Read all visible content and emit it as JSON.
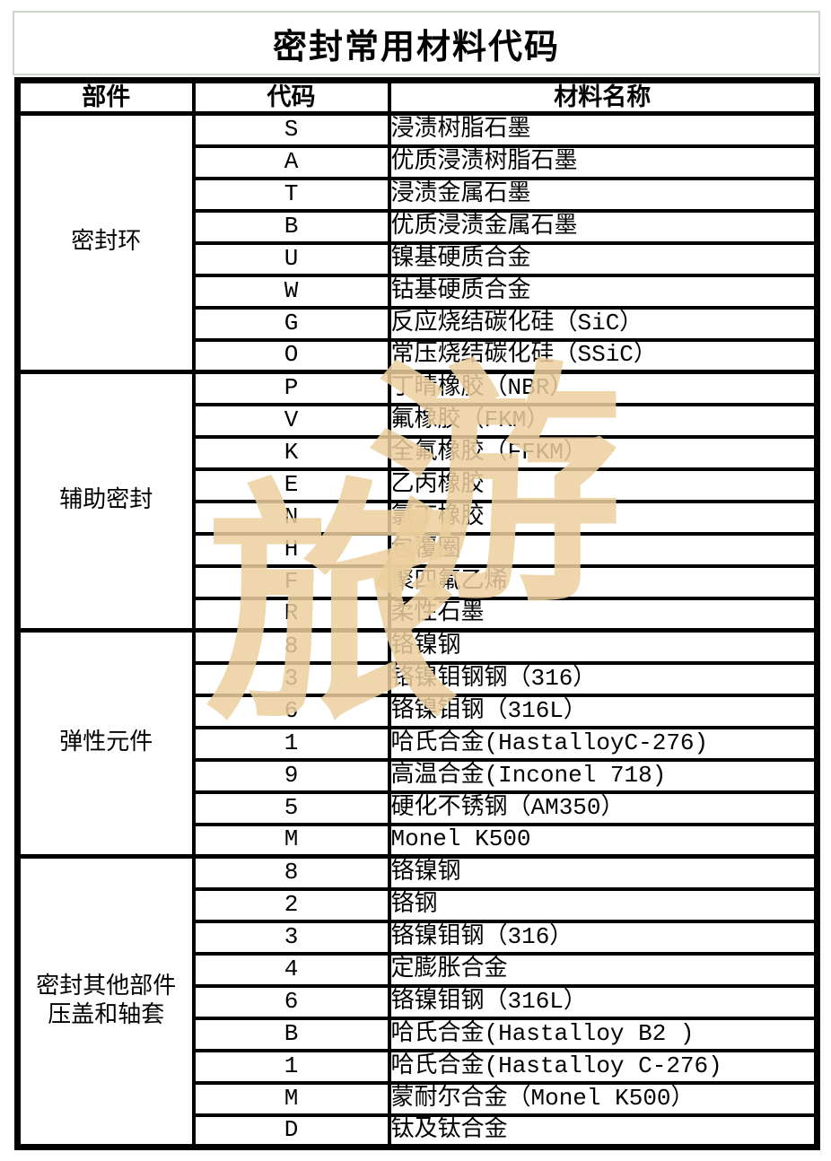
{
  "title": "密封常用材料代码",
  "colors": {
    "ink": "#000000",
    "title_box_border": "#c9d6c9",
    "watermark": "#edcf9e"
  },
  "watermark": {
    "char_top_right": "游",
    "char_bottom_left": "旅"
  },
  "table": {
    "headers": [
      "部件",
      "代码",
      "材料名称"
    ],
    "sections": [
      {
        "component_lines": [
          "密封环"
        ],
        "rows": [
          {
            "code": "S",
            "material": "浸渍树脂石墨"
          },
          {
            "code": "A",
            "material": "优质浸渍树脂石墨"
          },
          {
            "code": "T",
            "material": "浸渍金属石墨"
          },
          {
            "code": "B",
            "material": "优质浸渍金属石墨"
          },
          {
            "code": "U",
            "material": "镍基硬质合金"
          },
          {
            "code": "W",
            "material": "钴基硬质合金"
          },
          {
            "code": "G",
            "material": "反应烧结碳化硅（SiC）"
          },
          {
            "code": "O",
            "material": "常压烧结碳化硅（SSiC）"
          }
        ]
      },
      {
        "component_lines": [
          "辅助密封"
        ],
        "rows": [
          {
            "code": "P",
            "material": "丁晴橡胶（NBR）"
          },
          {
            "code": "V",
            "material": "氟橡胶（FKM）"
          },
          {
            "code": "K",
            "material": "全氟橡胶（FFKM）"
          },
          {
            "code": "E",
            "material": "乙丙橡胶"
          },
          {
            "code": "N",
            "material": "氯丁橡胶"
          },
          {
            "code": "H",
            "material": "包覆圈"
          },
          {
            "code": "F",
            "material": "聚四氟乙烯"
          },
          {
            "code": "R",
            "material": "柔性石墨"
          }
        ]
      },
      {
        "component_lines": [
          "弹性元件"
        ],
        "rows": [
          {
            "code": "8",
            "material": "铬镍钢"
          },
          {
            "code": "3",
            "material": "铬镍钼钢钢（316）"
          },
          {
            "code": "6",
            "material": "铬镍钼钢（316L）"
          },
          {
            "code": "1",
            "material": "哈氏合金(HastalloyC-276)"
          },
          {
            "code": "9",
            "material": "高温合金(Inconel 718)"
          },
          {
            "code": "5",
            "material": "硬化不锈钢（AM350）"
          },
          {
            "code": "M",
            "material": "Monel K500"
          }
        ]
      },
      {
        "component_lines": [
          "密封其他部件",
          "压盖和轴套"
        ],
        "rows": [
          {
            "code": "8",
            "material": "铬镍钢"
          },
          {
            "code": "2",
            "material": "铬钢"
          },
          {
            "code": "3",
            "material": "铬镍钼钢（316）"
          },
          {
            "code": "4",
            "material": "定膨胀合金"
          },
          {
            "code": "6",
            "material": "铬镍钼钢（316L）"
          },
          {
            "code": "B",
            "material": "哈氏合金(Hastalloy B2 )"
          },
          {
            "code": "1",
            "material": "哈氏合金(Hastalloy C-276)"
          },
          {
            "code": "M",
            "material": "蒙耐尔合金（Monel K500）"
          },
          {
            "code": "D",
            "material": "钛及钛合金"
          }
        ]
      }
    ]
  }
}
